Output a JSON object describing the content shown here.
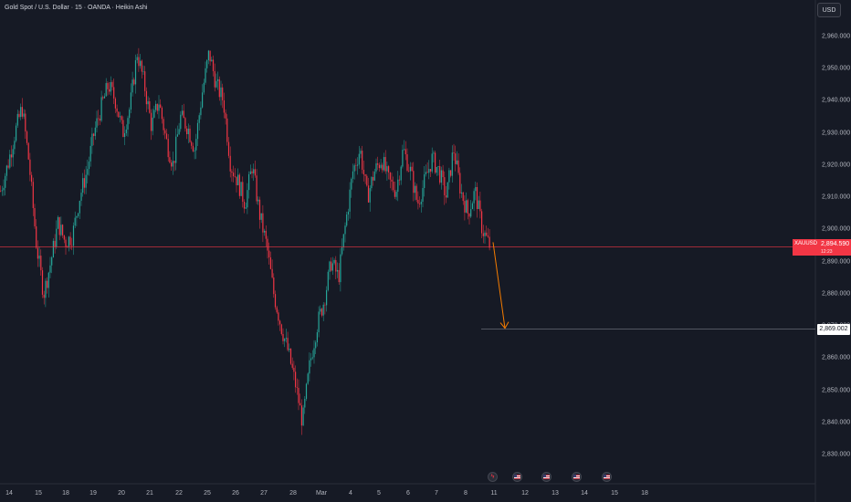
{
  "chart": {
    "title": "Gold Spot / U.S. Dollar · 15 · OANDA · Heikin Ashi",
    "currency_label": "USD",
    "current_price": {
      "symbol": "XAUUSD",
      "value": "2,894.590",
      "countdown": "12:23",
      "price": 2894.59,
      "color": "#f23645"
    },
    "target_price": {
      "value": "2,869.002",
      "price": 2869.002
    },
    "up_color": "#26a69a",
    "down_color": "#f23645",
    "arrow_color": "#f57c00",
    "y_axis": {
      "ticks": [
        "2,960.000",
        "2,950.000",
        "2,940.000",
        "2,930.000",
        "2,920.000",
        "2,910.000",
        "2,900.000",
        "2,890.000",
        "2,880.000",
        "2,870.000",
        "2,860.000",
        "2,850.000",
        "2,840.000",
        "2,830.000"
      ],
      "tick_values": [
        2960,
        2950,
        2940,
        2930,
        2920,
        2910,
        2900,
        2890,
        2880,
        2870,
        2860,
        2850,
        2840,
        2830
      ]
    },
    "x_axis": {
      "labels": [
        "14",
        "15",
        "18",
        "19",
        "20",
        "21",
        "22",
        "25",
        "26",
        "27",
        "28",
        "Mar",
        "4",
        "5",
        "6",
        "7",
        "8",
        "11",
        "12",
        "13",
        "14",
        "15",
        "18"
      ]
    },
    "events": [
      {
        "name": "earnings-event-icon",
        "icon": "lightning"
      },
      {
        "name": "us-economic-event-icon",
        "icon": "us-flag"
      },
      {
        "name": "us-economic-event-icon",
        "icon": "us-flag"
      },
      {
        "name": "us-economic-event-icon",
        "icon": "us-flag"
      },
      {
        "name": "us-economic-event-icon",
        "icon": "us-flag"
      }
    ]
  },
  "chart_data": {
    "type": "candlestick",
    "title": "Gold Spot / U.S. Dollar · 15 · OANDA · Heikin Ashi",
    "xlabel": "",
    "ylabel": "",
    "ylim": [
      2828,
      2972
    ],
    "x": [
      "14",
      "15",
      "18",
      "19",
      "20",
      "21",
      "22",
      "25",
      "26",
      "27",
      "28",
      "Mar",
      "4",
      "5",
      "6",
      "7",
      "8",
      "11"
    ],
    "close_path": [
      2912,
      2920,
      2930,
      2938,
      2920,
      2895,
      2880,
      2890,
      2902,
      2896,
      2898,
      2910,
      2918,
      2930,
      2938,
      2945,
      2940,
      2930,
      2938,
      2955,
      2945,
      2932,
      2940,
      2928,
      2920,
      2935,
      2932,
      2925,
      2942,
      2955,
      2945,
      2940,
      2920,
      2915,
      2908,
      2920,
      2905,
      2895,
      2880,
      2870,
      2862,
      2852,
      2840,
      2858,
      2870,
      2878,
      2890,
      2885,
      2902,
      2918,
      2925,
      2910,
      2918,
      2922,
      2915,
      2912,
      2925,
      2918,
      2908,
      2915,
      2922,
      2918,
      2910,
      2925,
      2912,
      2905,
      2912,
      2900,
      2895
    ],
    "annotations": [
      {
        "type": "horizontal_line",
        "price": 2894.59,
        "label": "XAUUSD 2,894.590"
      },
      {
        "type": "arrow",
        "from_price": 2896,
        "to_price": 2869,
        "color": "#f57c00"
      },
      {
        "type": "horizontal_line",
        "price": 2869.002,
        "label": "2,869.002"
      }
    ]
  }
}
